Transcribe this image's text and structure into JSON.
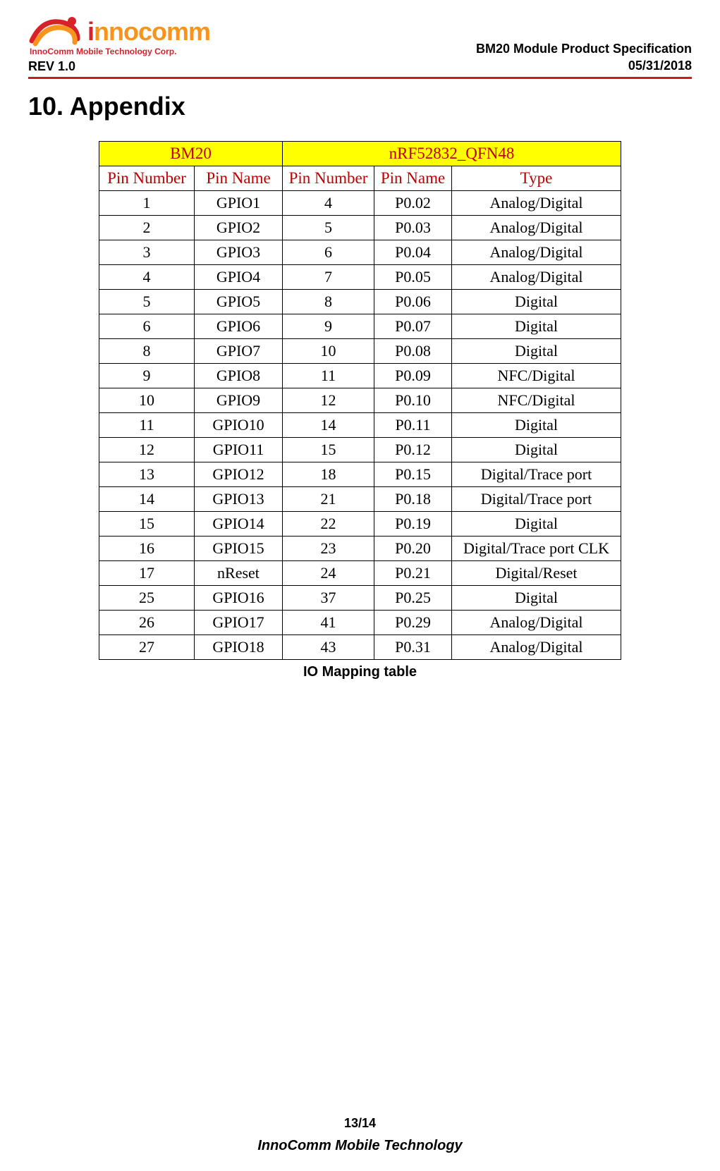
{
  "header": {
    "logo_main_i": "i",
    "logo_main_rest": "nnocomm",
    "logo_subtitle": "InnoComm Mobile Technology Corp.",
    "rev": "REV 1.0",
    "spec_title": "BM20 Module Product Specification",
    "date": "05/31/2018"
  },
  "section": {
    "title": "10.  Appendix"
  },
  "table": {
    "caption": "IO Mapping table",
    "group_headers": [
      "BM20",
      "nRF52832_QFN48"
    ],
    "col_headers": [
      "Pin Number",
      "Pin Name",
      "Pin Number",
      "Pin Name",
      "Type"
    ],
    "header_bg": "#ffff00",
    "header_fg": "#c00000",
    "border_color": "#000000",
    "font_family": "Times New Roman",
    "rows": [
      [
        "1",
        "GPIO1",
        "4",
        "P0.02",
        "Analog/Digital"
      ],
      [
        "2",
        "GPIO2",
        "5",
        "P0.03",
        "Analog/Digital"
      ],
      [
        "3",
        "GPIO3",
        "6",
        "P0.04",
        "Analog/Digital"
      ],
      [
        "4",
        "GPIO4",
        "7",
        "P0.05",
        "Analog/Digital"
      ],
      [
        "5",
        "GPIO5",
        "8",
        "P0.06",
        "Digital"
      ],
      [
        "6",
        "GPIO6",
        "9",
        "P0.07",
        "Digital"
      ],
      [
        "8",
        "GPIO7",
        "10",
        "P0.08",
        "Digital"
      ],
      [
        "9",
        "GPIO8",
        "11",
        "P0.09",
        "NFC/Digital"
      ],
      [
        "10",
        "GPIO9",
        "12",
        "P0.10",
        "NFC/Digital"
      ],
      [
        "11",
        "GPIO10",
        "14",
        "P0.11",
        "Digital"
      ],
      [
        "12",
        "GPIO11",
        "15",
        "P0.12",
        "Digital"
      ],
      [
        "13",
        "GPIO12",
        "18",
        "P0.15",
        "Digital/Trace port"
      ],
      [
        "14",
        "GPIO13",
        "21",
        "P0.18",
        "Digital/Trace port"
      ],
      [
        "15",
        "GPIO14",
        "22",
        "P0.19",
        "Digital"
      ],
      [
        "16",
        "GPIO15",
        "23",
        "P0.20",
        "Digital/Trace port CLK"
      ],
      [
        "17",
        "nReset",
        "24",
        "P0.21",
        "Digital/Reset"
      ],
      [
        "25",
        "GPIO16",
        "37",
        "P0.25",
        "Digital"
      ],
      [
        "26",
        "GPIO17",
        "41",
        "P0.29",
        "Analog/Digital"
      ],
      [
        "27",
        "GPIO18",
        "43",
        "P0.31",
        "Analog/Digital"
      ]
    ]
  },
  "footer": {
    "page": "13/14",
    "company": "InnoComm Mobile Technology"
  },
  "colors": {
    "rule": "#c02020",
    "logo_i": "#d8222a",
    "logo_rest": "#f7941d"
  }
}
